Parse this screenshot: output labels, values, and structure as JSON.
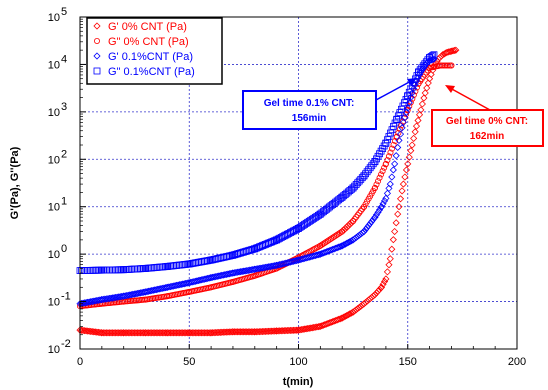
{
  "chart_data": {
    "type": "scatter",
    "title": "",
    "xlabel": "t(min)",
    "ylabel": "G'(Pa), G''(Pa)",
    "xlim": [
      0,
      200
    ],
    "ylim": [
      0.01,
      100000
    ],
    "yscale": "log",
    "grid": true,
    "legend_position": "top-left",
    "x_ticks": [
      0,
      50,
      100,
      150,
      200
    ],
    "y_tick_exponents": [
      -2,
      -1,
      0,
      1,
      2,
      3,
      4,
      5
    ],
    "series": [
      {
        "name": "G' 0% CNT (Pa)",
        "color": "#ff0000",
        "marker": "diamond",
        "x": [
          0,
          10,
          20,
          30,
          40,
          50,
          60,
          70,
          80,
          90,
          100,
          110,
          120,
          125,
          130,
          135,
          138,
          140,
          142,
          144,
          146,
          148,
          150,
          152,
          154,
          156,
          158,
          160,
          162,
          164,
          166,
          168,
          170,
          172
        ],
        "y": [
          0.025,
          0.022,
          0.022,
          0.022,
          0.022,
          0.022,
          0.022,
          0.023,
          0.023,
          0.024,
          0.025,
          0.03,
          0.045,
          0.06,
          0.09,
          0.14,
          0.2,
          0.3,
          0.8,
          3,
          10,
          30,
          80,
          200,
          500,
          1100,
          2500,
          5000,
          9000,
          13000,
          16000,
          18000,
          19000,
          20000
        ]
      },
      {
        "name": "G\" 0% CNT (Pa)",
        "color": "#ff0000",
        "marker": "circle",
        "x": [
          0,
          10,
          20,
          30,
          40,
          50,
          60,
          70,
          80,
          90,
          100,
          110,
          120,
          125,
          130,
          135,
          140,
          145,
          150,
          155,
          160,
          165,
          170
        ],
        "y": [
          0.08,
          0.09,
          0.1,
          0.11,
          0.13,
          0.16,
          0.2,
          0.26,
          0.35,
          0.5,
          0.85,
          1.5,
          3,
          5,
          10,
          25,
          80,
          300,
          1100,
          4000,
          8500,
          9500,
          9500
        ]
      },
      {
        "name": "G' 0.1%CNT (Pa)",
        "color": "#0000ff",
        "marker": "diamond",
        "x": [
          0,
          10,
          20,
          30,
          40,
          50,
          60,
          70,
          80,
          90,
          100,
          110,
          120,
          125,
          130,
          135,
          138,
          140,
          142,
          144,
          146,
          148,
          150,
          152,
          154,
          156,
          158,
          160,
          162
        ],
        "y": [
          0.09,
          0.11,
          0.13,
          0.16,
          0.2,
          0.25,
          0.32,
          0.4,
          0.48,
          0.58,
          0.75,
          1.0,
          1.5,
          2.0,
          3.0,
          6.0,
          10,
          15,
          30,
          80,
          250,
          600,
          1200,
          2500,
          4500,
          7000,
          10000,
          12000,
          13000
        ]
      },
      {
        "name": "G\" 0.1%CNT (Pa)",
        "color": "#0000ff",
        "marker": "square",
        "x": [
          0,
          10,
          20,
          30,
          40,
          50,
          60,
          70,
          80,
          90,
          100,
          110,
          120,
          125,
          130,
          135,
          140,
          145,
          150,
          155,
          160,
          162
        ],
        "y": [
          0.45,
          0.46,
          0.47,
          0.5,
          0.55,
          0.62,
          0.75,
          0.95,
          1.3,
          2.0,
          3.5,
          7.0,
          16,
          25,
          45,
          90,
          220,
          700,
          2200,
          7000,
          14000,
          16000
        ]
      }
    ],
    "annotations": [
      {
        "text_lines": [
          "Gel time 0.1% CNT:",
          "156min"
        ],
        "color": "#0000ff",
        "arrow_to": [
          158,
          7000
        ]
      },
      {
        "text_lines": [
          "Gel time 0% CNT:",
          "162min"
        ],
        "color": "#ff0000",
        "arrow_to": [
          163,
          8000
        ]
      }
    ]
  }
}
